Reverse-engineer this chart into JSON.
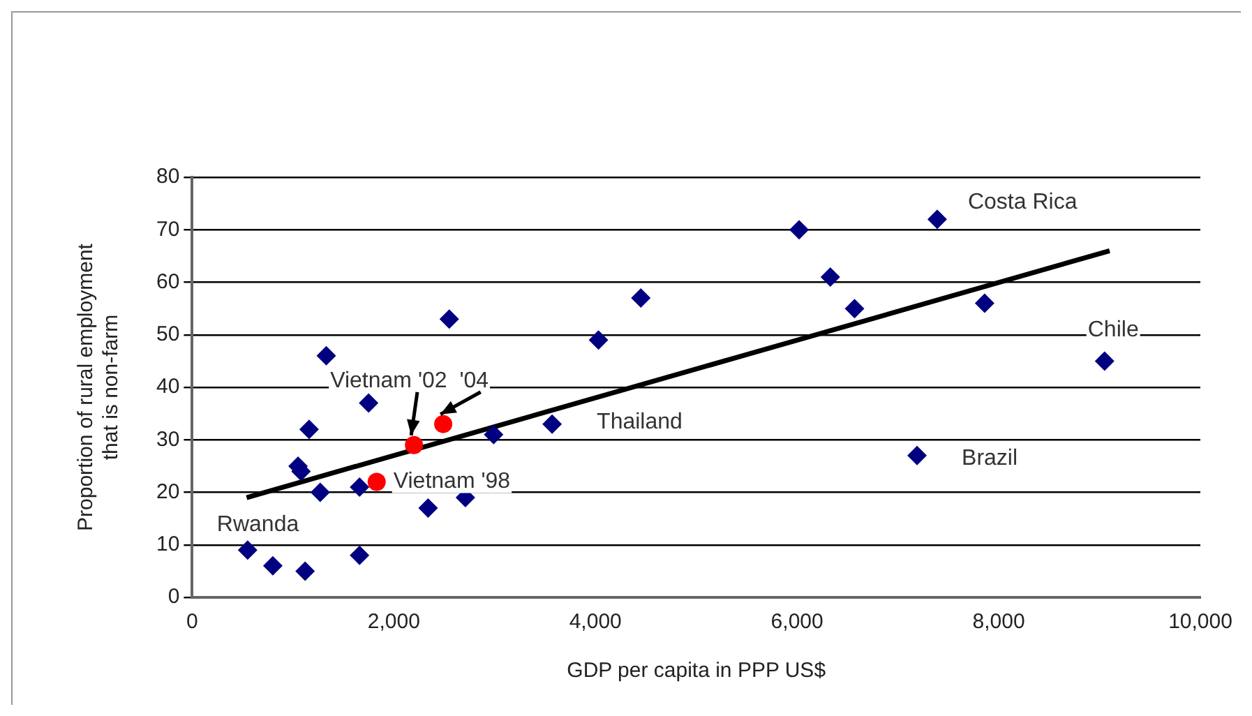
{
  "chart_data": {
    "type": "scatter",
    "xlabel": "GDP per capita in PPP US$",
    "ylabel": "Proportion of rural employment\nthat is non-farm",
    "xlim": [
      0,
      10000
    ],
    "xticks": [
      {
        "value": 0,
        "label": "0"
      },
      {
        "value": 2000,
        "label": "2,000"
      },
      {
        "value": 4000,
        "label": "4,000"
      },
      {
        "value": 6000,
        "label": "6,000"
      },
      {
        "value": 8000,
        "label": "8,000"
      },
      {
        "value": 10000,
        "label": "10,000"
      }
    ],
    "ylim": [
      0,
      80
    ],
    "yticks": [
      0,
      10,
      20,
      30,
      40,
      50,
      60,
      70,
      80
    ],
    "grid": "y",
    "legend": false,
    "series": [
      {
        "type": "scatter",
        "color": "#000080",
        "marker": "diamond",
        "x": [
          550,
          800,
          1120,
          1050,
          1080,
          1270,
          1160,
          1330,
          1660,
          1660,
          1750,
          2340,
          2550,
          2710,
          2990,
          3570,
          4030,
          4450,
          6020,
          6330,
          6570,
          7390,
          7190,
          7860,
          9050
        ],
        "values": [
          9,
          6,
          5,
          25,
          24,
          20,
          32,
          46,
          8,
          21,
          37,
          17,
          53,
          19,
          31,
          33,
          49,
          57,
          70,
          61,
          55,
          72,
          27,
          56,
          45
        ]
      },
      {
        "type": "scatter",
        "color": "#ff0000",
        "marker": "circle",
        "x": [
          1830,
          2200,
          2490
        ],
        "values": [
          22,
          29,
          33
        ]
      },
      {
        "type": "line",
        "color": "#000000",
        "marker": "none",
        "x": [
          540,
          9100
        ],
        "values": [
          19,
          66
        ]
      }
    ],
    "annotations": [
      {
        "text": "Rwanda",
        "x": 550,
        "y": 9
      },
      {
        "text": "Vietnam '02  '04",
        "x": 2200,
        "y": 29
      },
      {
        "text": "Vietnam '98",
        "x": 1830,
        "y": 22
      },
      {
        "text": "Thailand",
        "x": 3570,
        "y": 33
      },
      {
        "text": "Costa Rica",
        "x": 7390,
        "y": 72
      },
      {
        "text": "Brazil",
        "x": 7190,
        "y": 27
      },
      {
        "text": "Chile",
        "x": 9050,
        "y": 45
      }
    ]
  }
}
